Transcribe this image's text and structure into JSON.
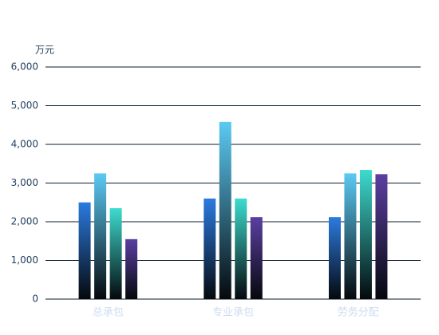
{
  "chart_data": {
    "type": "bar",
    "y_unit": "万元",
    "categories": [
      "总承包",
      "专业承包",
      "劳务分配"
    ],
    "series": [
      {
        "color": "#2b7be0",
        "values": [
          2500,
          2600,
          2120
        ]
      },
      {
        "color": "#5ccaf3",
        "values": [
          3250,
          4580,
          3250
        ]
      },
      {
        "color": "#3ddccf",
        "values": [
          2350,
          2600,
          3340
        ]
      },
      {
        "color": "#5b3fa2",
        "values": [
          1550,
          2120,
          3230
        ]
      }
    ],
    "ylim": [
      0,
      6000
    ],
    "yticks": [
      0,
      {
        "value": 1000,
        "label": "1,000"
      },
      {
        "value": 2000,
        "label": "2,000"
      },
      {
        "value": 3000,
        "label": "3,000"
      },
      {
        "value": 4000,
        "label": "4,000"
      },
      {
        "value": 5000,
        "label": "5,000"
      },
      {
        "value": 6000,
        "label": "6,000"
      }
    ],
    "grid": true
  }
}
